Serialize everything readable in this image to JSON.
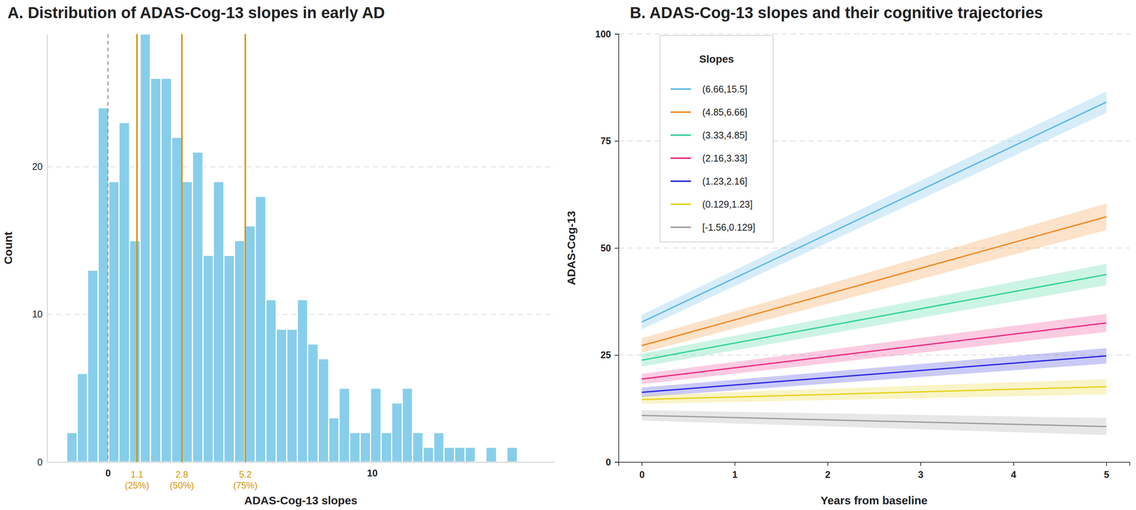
{
  "chart_data": [
    {
      "type": "histogram",
      "title": "A. Distribution of ADAS-Cog-13 slopes in early AD",
      "x_label": "ADAS-Cog-13 slopes",
      "y_label": "Count",
      "color": "#87ceeb",
      "bins": [
        -1.56,
        -1.16,
        -0.77,
        -0.37,
        0.03,
        0.42,
        0.82,
        1.22,
        1.61,
        2.01,
        2.41,
        2.8,
        3.2,
        3.6,
        3.99,
        4.39,
        4.79,
        5.18,
        5.58,
        5.98,
        6.37,
        6.77,
        7.17,
        7.56,
        7.96,
        8.36,
        8.75,
        9.15,
        9.55,
        9.94,
        10.34,
        10.74,
        11.14,
        11.53,
        11.93,
        12.33,
        12.72,
        13.12,
        13.52,
        13.91,
        14.31,
        14.71,
        15.1,
        15.5
      ],
      "values": [
        2,
        6,
        13,
        24,
        19,
        23,
        15,
        29,
        26,
        26,
        22,
        19,
        21,
        14,
        19,
        14,
        15,
        16,
        18,
        11,
        9,
        9,
        11,
        8,
        7,
        3,
        5,
        2,
        2,
        5,
        2,
        4,
        5,
        2,
        1,
        2,
        1,
        1,
        1,
        0,
        1,
        0,
        1
      ],
      "xlim": [
        -2.3,
        16.9
      ],
      "xticks": [
        0,
        10
      ],
      "ylim": [
        0,
        29
      ],
      "yticks": [
        0,
        10,
        20
      ],
      "grid": true,
      "reference_line": {
        "x": 0,
        "color": "#999999",
        "line_style": "dashed"
      },
      "annotations": [
        {
          "x": 1.1,
          "label": "1.1",
          "sublabel": "(25%)",
          "color": "#d4940f"
        },
        {
          "x": 2.8,
          "label": "2.8",
          "sublabel": "(50%)",
          "color": "#d4940f"
        },
        {
          "x": 5.2,
          "label": "5.2",
          "sublabel": "(75%)",
          "color": "#d4940f"
        }
      ]
    },
    {
      "type": "line",
      "title": "B. ADAS-Cog-13 slopes and their cognitive trajectories",
      "x_label": "Years from baseline",
      "y_label": "ADAS-Cog-13",
      "legend": "top-left",
      "legend_title": "Slopes",
      "x": [
        0,
        5
      ],
      "xlim": [
        -0.25,
        5.25
      ],
      "xticks": [
        0,
        1,
        2,
        3,
        4,
        5
      ],
      "ylim": [
        0,
        100
      ],
      "yticks": [
        0,
        25,
        50,
        75,
        100
      ],
      "grid": true,
      "series": [
        {
          "name": "(6.66,15.5]",
          "color": "#5bb8e8",
          "values": [
            32.7,
            84.1
          ],
          "lower": [
            31.0,
            81.6
          ],
          "upper": [
            34.4,
            86.6
          ]
        },
        {
          "name": "(4.85,6.66]",
          "color": "#f08a24",
          "values": [
            27.2,
            57.3
          ],
          "lower": [
            25.5,
            54.2
          ],
          "upper": [
            28.9,
            60.4
          ]
        },
        {
          "name": "(3.33,4.85]",
          "color": "#34d399",
          "values": [
            23.8,
            43.8
          ],
          "lower": [
            22.3,
            41.3
          ],
          "upper": [
            25.3,
            46.3
          ]
        },
        {
          "name": "(2.16,3.33]",
          "color": "#ef2f88",
          "values": [
            19.4,
            32.5
          ],
          "lower": [
            18.2,
            30.4
          ],
          "upper": [
            20.6,
            34.6
          ]
        },
        {
          "name": "(1.23,2.16]",
          "color": "#2d2de0",
          "values": [
            16.3,
            24.8
          ],
          "lower": [
            15.2,
            23.0
          ],
          "upper": [
            17.4,
            26.6
          ]
        },
        {
          "name": "(0.129,1.23]",
          "color": "#e6d21e",
          "values": [
            14.6,
            17.6
          ],
          "lower": [
            13.6,
            15.8
          ],
          "upper": [
            15.6,
            19.4
          ]
        },
        {
          "name": "[-1.56,0.129]",
          "color": "#a0a0a0",
          "values": [
            10.9,
            8.3
          ],
          "lower": [
            9.7,
            6.3
          ],
          "upper": [
            12.1,
            10.3
          ]
        }
      ]
    }
  ]
}
